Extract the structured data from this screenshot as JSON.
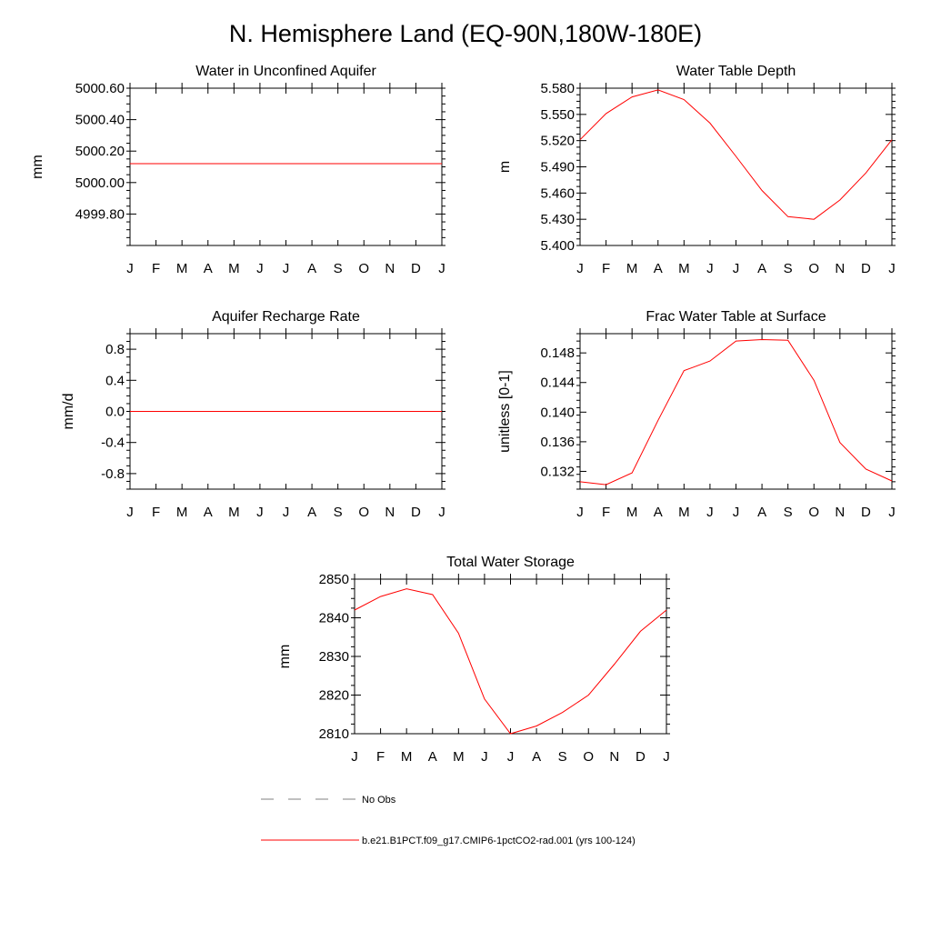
{
  "title": "N. Hemisphere Land (EQ-90N,180W-180E)",
  "chart_data": [
    {
      "type": "line",
      "title": "Water in Unconfined Aquifer",
      "ylabel": "mm",
      "categories": [
        "J",
        "F",
        "M",
        "A",
        "M",
        "J",
        "J",
        "A",
        "S",
        "O",
        "N",
        "D",
        "J"
      ],
      "yticks": [
        "5000.60",
        "5000.40",
        "5000.20",
        "5000.00",
        "4999.80"
      ],
      "ylim": [
        4999.6,
        5000.6
      ],
      "series": [
        {
          "color": "#ff0000",
          "values": [
            5000.12,
            5000.12,
            5000.12,
            5000.12,
            5000.12,
            5000.12,
            5000.12,
            5000.12,
            5000.12,
            5000.12,
            5000.12,
            5000.12,
            5000.12
          ]
        }
      ]
    },
    {
      "type": "line",
      "title": "Water Table Depth",
      "ylabel": "m",
      "categories": [
        "J",
        "F",
        "M",
        "A",
        "M",
        "J",
        "J",
        "A",
        "S",
        "O",
        "N",
        "D",
        "J"
      ],
      "yticks": [
        "5.580",
        "5.550",
        "5.520",
        "5.490",
        "5.460",
        "5.430",
        "5.400"
      ],
      "ylim": [
        5.4,
        5.58
      ],
      "series": [
        {
          "color": "#ff0000",
          "values": [
            5.521,
            5.551,
            5.57,
            5.578,
            5.567,
            5.54,
            5.502,
            5.463,
            5.433,
            5.43,
            5.452,
            5.483,
            5.521
          ]
        }
      ]
    },
    {
      "type": "line",
      "title": "Aquifer Recharge Rate",
      "ylabel": "mm/d",
      "categories": [
        "J",
        "F",
        "M",
        "A",
        "M",
        "J",
        "J",
        "A",
        "S",
        "O",
        "N",
        "D",
        "J"
      ],
      "yticks": [
        "0.8",
        "0.4",
        "0.0",
        "-0.4",
        "-0.8"
      ],
      "ylim": [
        -1.0,
        1.0
      ],
      "series": [
        {
          "color": "#ff0000",
          "values": [
            0,
            0,
            0,
            0,
            0,
            0,
            0,
            0,
            0,
            0,
            0,
            0,
            0
          ]
        }
      ]
    },
    {
      "type": "line",
      "title": "Frac Water Table at Surface",
      "ylabel": "unitless [0-1]",
      "categories": [
        "J",
        "F",
        "M",
        "A",
        "M",
        "J",
        "J",
        "A",
        "S",
        "O",
        "N",
        "D",
        "J"
      ],
      "yticks": [
        "0.148",
        "0.144",
        "0.140",
        "0.136",
        "0.132"
      ],
      "ylim": [
        0.1296,
        0.1506
      ],
      "series": [
        {
          "color": "#ff0000",
          "values": [
            0.1306,
            0.1302,
            0.1318,
            0.1389,
            0.1456,
            0.1469,
            0.1496,
            0.1498,
            0.1497,
            0.1443,
            0.1359,
            0.1323,
            0.1307
          ]
        }
      ]
    },
    {
      "type": "line",
      "title": "Total Water Storage",
      "ylabel": "mm",
      "categories": [
        "J",
        "F",
        "M",
        "A",
        "M",
        "J",
        "J",
        "A",
        "S",
        "O",
        "N",
        "D",
        "J"
      ],
      "yticks": [
        "2850",
        "2840",
        "2830",
        "2820",
        "2810"
      ],
      "ylim": [
        2810,
        2850
      ],
      "series": [
        {
          "color": "#ff0000",
          "values": [
            2842,
            2845.5,
            2847.5,
            2846,
            2836,
            2819,
            2810,
            2812,
            2815.5,
            2820,
            2828,
            2836.5,
            2842
          ]
        }
      ]
    }
  ],
  "legend": [
    {
      "label": "No Obs",
      "color": "#808080",
      "style": "dashed"
    },
    {
      "label": "b.e21.B1PCT.f09_g17.CMIP6-1pctCO2-rad.001 (yrs 100-124)",
      "color": "#ff0000",
      "style": "solid"
    }
  ]
}
